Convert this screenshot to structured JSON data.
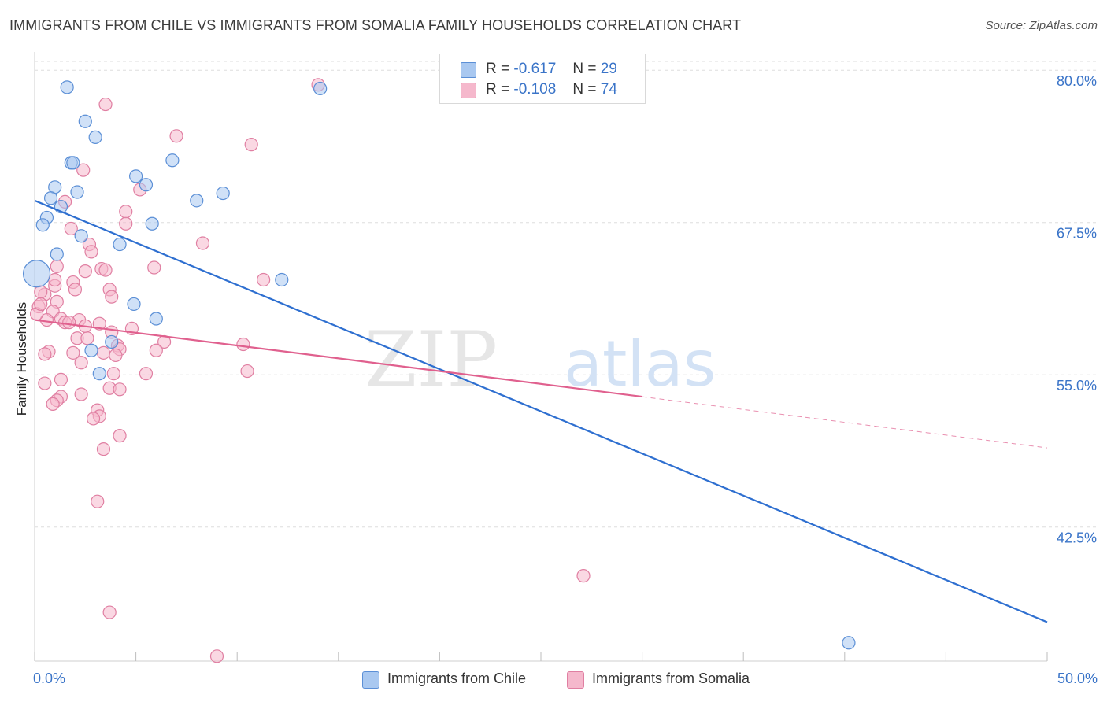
{
  "title": "IMMIGRANTS FROM CHILE VS IMMIGRANTS FROM SOMALIA FAMILY HOUSEHOLDS CORRELATION CHART",
  "source": "Source: ZipAtlas.com",
  "watermark": {
    "zip": "ZIP",
    "atlas": "atlas"
  },
  "stats": [
    {
      "r_label": "R =",
      "r_value": "-0.617",
      "n_label": "N =",
      "n_value": "29",
      "color": "#a9c8f0"
    },
    {
      "r_label": "R =",
      "r_value": "-0.108",
      "n_label": "N =",
      "n_value": "74",
      "color": "#f5b8cc"
    }
  ],
  "legend": [
    {
      "label": "Immigrants from Chile",
      "color": "#a9c8f0"
    },
    {
      "label": "Immigrants from Somalia",
      "color": "#f5b8cc"
    }
  ],
  "colors": {
    "chile_fill": "#a9c8f0",
    "chile_stroke": "#5b8fd6",
    "chile_line": "#2e6fd0",
    "somalia_fill": "#f5b8cc",
    "somalia_stroke": "#e07fa2",
    "somalia_line": "#e0608e",
    "grid": "#dddddd",
    "axis_text": "#3a74c8"
  },
  "chart_data": {
    "type": "scatter",
    "title": "IMMIGRANTS FROM CHILE VS IMMIGRANTS FROM SOMALIA FAMILY HOUSEHOLDS CORRELATION CHART",
    "xlabel": "",
    "ylabel": "Family Households",
    "xlim": [
      0,
      50
    ],
    "ylim": [
      31.5,
      81.5
    ],
    "x_tick_labels": [
      {
        "value": 0,
        "label": "0.0%"
      },
      {
        "value": 50,
        "label": "50.0%"
      }
    ],
    "x_minor_ticks": [
      0,
      5,
      10,
      15,
      20,
      25,
      30,
      35,
      40,
      45,
      50
    ],
    "y_ticks": [
      {
        "value": 80.0,
        "label": "80.0%"
      },
      {
        "value": 67.5,
        "label": "67.5%"
      },
      {
        "value": 55.0,
        "label": "55.0%"
      },
      {
        "value": 42.5,
        "label": "42.5%"
      }
    ],
    "series": [
      {
        "name": "Immigrants from Chile",
        "R": -0.617,
        "N": 29,
        "points": [
          [
            0.1,
            63.3,
            "large"
          ],
          [
            1.6,
            78.6
          ],
          [
            2.5,
            75.8
          ],
          [
            3.0,
            74.5
          ],
          [
            1.8,
            72.4
          ],
          [
            1.9,
            72.4
          ],
          [
            6.8,
            72.6
          ],
          [
            5.0,
            71.3
          ],
          [
            5.5,
            70.6
          ],
          [
            1.0,
            70.4
          ],
          [
            0.8,
            69.5
          ],
          [
            2.1,
            70.0
          ],
          [
            8.0,
            69.3
          ],
          [
            9.3,
            69.9
          ],
          [
            1.3,
            68.8
          ],
          [
            0.6,
            67.9
          ],
          [
            0.4,
            67.3
          ],
          [
            5.8,
            67.4
          ],
          [
            2.3,
            66.4
          ],
          [
            4.2,
            65.7
          ],
          [
            1.1,
            64.9
          ],
          [
            12.2,
            62.8
          ],
          [
            4.9,
            60.8
          ],
          [
            6.0,
            59.6
          ],
          [
            3.8,
            57.7
          ],
          [
            2.8,
            57.0
          ],
          [
            3.2,
            55.1
          ],
          [
            14.1,
            78.5
          ],
          [
            40.2,
            33.0
          ]
        ],
        "trend": {
          "x": [
            0,
            50
          ],
          "y": [
            69.3,
            34.7
          ],
          "style": "solid"
        }
      },
      {
        "name": "Immigrants from Somalia",
        "R": -0.108,
        "N": 74,
        "points": [
          [
            14.0,
            78.8
          ],
          [
            3.5,
            77.2
          ],
          [
            7.0,
            74.6
          ],
          [
            10.7,
            73.9
          ],
          [
            2.4,
            71.8
          ],
          [
            5.2,
            70.2
          ],
          [
            4.5,
            68.4
          ],
          [
            1.5,
            69.2
          ],
          [
            4.5,
            67.4
          ],
          [
            1.8,
            67.0
          ],
          [
            8.3,
            65.8
          ],
          [
            2.7,
            65.7
          ],
          [
            2.8,
            65.1
          ],
          [
            1.1,
            63.9
          ],
          [
            3.3,
            63.7
          ],
          [
            3.5,
            63.6
          ],
          [
            5.9,
            63.8
          ],
          [
            2.5,
            63.5
          ],
          [
            11.3,
            62.8
          ],
          [
            1.9,
            62.6
          ],
          [
            1.0,
            62.3
          ],
          [
            2.0,
            62.0
          ],
          [
            3.7,
            62.0
          ],
          [
            0.5,
            61.6
          ],
          [
            0.3,
            61.8
          ],
          [
            3.8,
            61.4
          ],
          [
            1.1,
            61.0
          ],
          [
            0.2,
            60.6
          ],
          [
            0.9,
            60.2
          ],
          [
            1.3,
            59.6
          ],
          [
            2.2,
            59.5
          ],
          [
            1.5,
            59.3
          ],
          [
            1.7,
            59.3
          ],
          [
            0.6,
            59.5
          ],
          [
            0.1,
            60.0
          ],
          [
            3.2,
            59.2
          ],
          [
            4.8,
            58.8
          ],
          [
            3.8,
            58.5
          ],
          [
            2.1,
            58.0
          ],
          [
            2.6,
            58.0
          ],
          [
            6.4,
            57.7
          ],
          [
            4.1,
            57.4
          ],
          [
            4.2,
            57.1
          ],
          [
            1.9,
            56.8
          ],
          [
            0.7,
            56.9
          ],
          [
            0.5,
            56.7
          ],
          [
            2.3,
            56.0
          ],
          [
            10.3,
            57.5
          ],
          [
            5.5,
            55.1
          ],
          [
            3.9,
            55.1
          ],
          [
            1.3,
            54.6
          ],
          [
            0.5,
            54.3
          ],
          [
            3.7,
            53.9
          ],
          [
            4.2,
            53.8
          ],
          [
            10.5,
            55.3
          ],
          [
            2.3,
            53.4
          ],
          [
            1.3,
            53.2
          ],
          [
            1.1,
            52.9
          ],
          [
            0.9,
            52.6
          ],
          [
            3.1,
            52.1
          ],
          [
            3.2,
            51.6
          ],
          [
            2.9,
            51.4
          ],
          [
            4.2,
            50.0
          ],
          [
            3.4,
            48.9
          ],
          [
            3.1,
            44.6
          ],
          [
            27.1,
            38.5
          ],
          [
            3.7,
            35.5
          ],
          [
            9.0,
            31.9
          ],
          [
            6.0,
            57.0
          ],
          [
            3.4,
            56.8
          ],
          [
            4.0,
            56.6
          ],
          [
            0.3,
            60.8
          ],
          [
            2.5,
            59.0
          ],
          [
            1.0,
            62.8
          ]
        ],
        "trend": {
          "x": [
            0,
            30
          ],
          "y": [
            59.5,
            53.2
          ],
          "style": "solid"
        },
        "trend_extension": {
          "x": [
            30,
            50
          ],
          "y": [
            53.2,
            49.0
          ],
          "style": "dashed"
        }
      }
    ]
  }
}
